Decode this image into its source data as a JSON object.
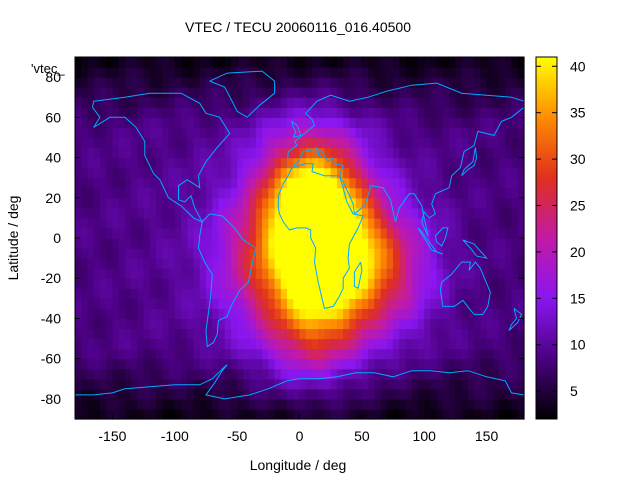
{
  "chart_data": {
    "type": "heatmap",
    "title": "VTEC / TECU 20060116_016.40500",
    "xlabel": "Longitude / deg",
    "ylabel": "Latitude / deg",
    "legend_label": "'vtec_",
    "xlim": [
      -180,
      180
    ],
    "ylim": [
      -90,
      90
    ],
    "x_ticks": [
      -150,
      -100,
      -50,
      0,
      50,
      100,
      150
    ],
    "y_ticks": [
      -80,
      -60,
      -40,
      -20,
      0,
      20,
      40,
      60,
      80
    ],
    "colorbar": {
      "range": [
        2,
        41
      ],
      "ticks": [
        5,
        10,
        15,
        20,
        25,
        30,
        35,
        40
      ],
      "palette": [
        "#000000",
        "#4b0082",
        "#8a16f0",
        "#c21aa6",
        "#e0301e",
        "#ff8c00",
        "#ffff00"
      ]
    },
    "grid_resolution_deg": [
      5,
      5
    ],
    "value_model": {
      "background": 8,
      "polar_min": 3,
      "peaks": [
        {
          "name": "north-africa",
          "lon": 10,
          "lat": 20,
          "value": 40
        },
        {
          "name": "southern-africa",
          "lon": 25,
          "lat": -10,
          "value": 36
        },
        {
          "name": "south-atlantic",
          "lon": 10,
          "lat": -40,
          "value": 24
        },
        {
          "name": "indian-ocean",
          "lon": 70,
          "lat": -15,
          "value": 21
        },
        {
          "name": "south-america-east",
          "lon": -30,
          "lat": -10,
          "value": 20
        }
      ]
    },
    "coastline_color": "#00aaff"
  }
}
